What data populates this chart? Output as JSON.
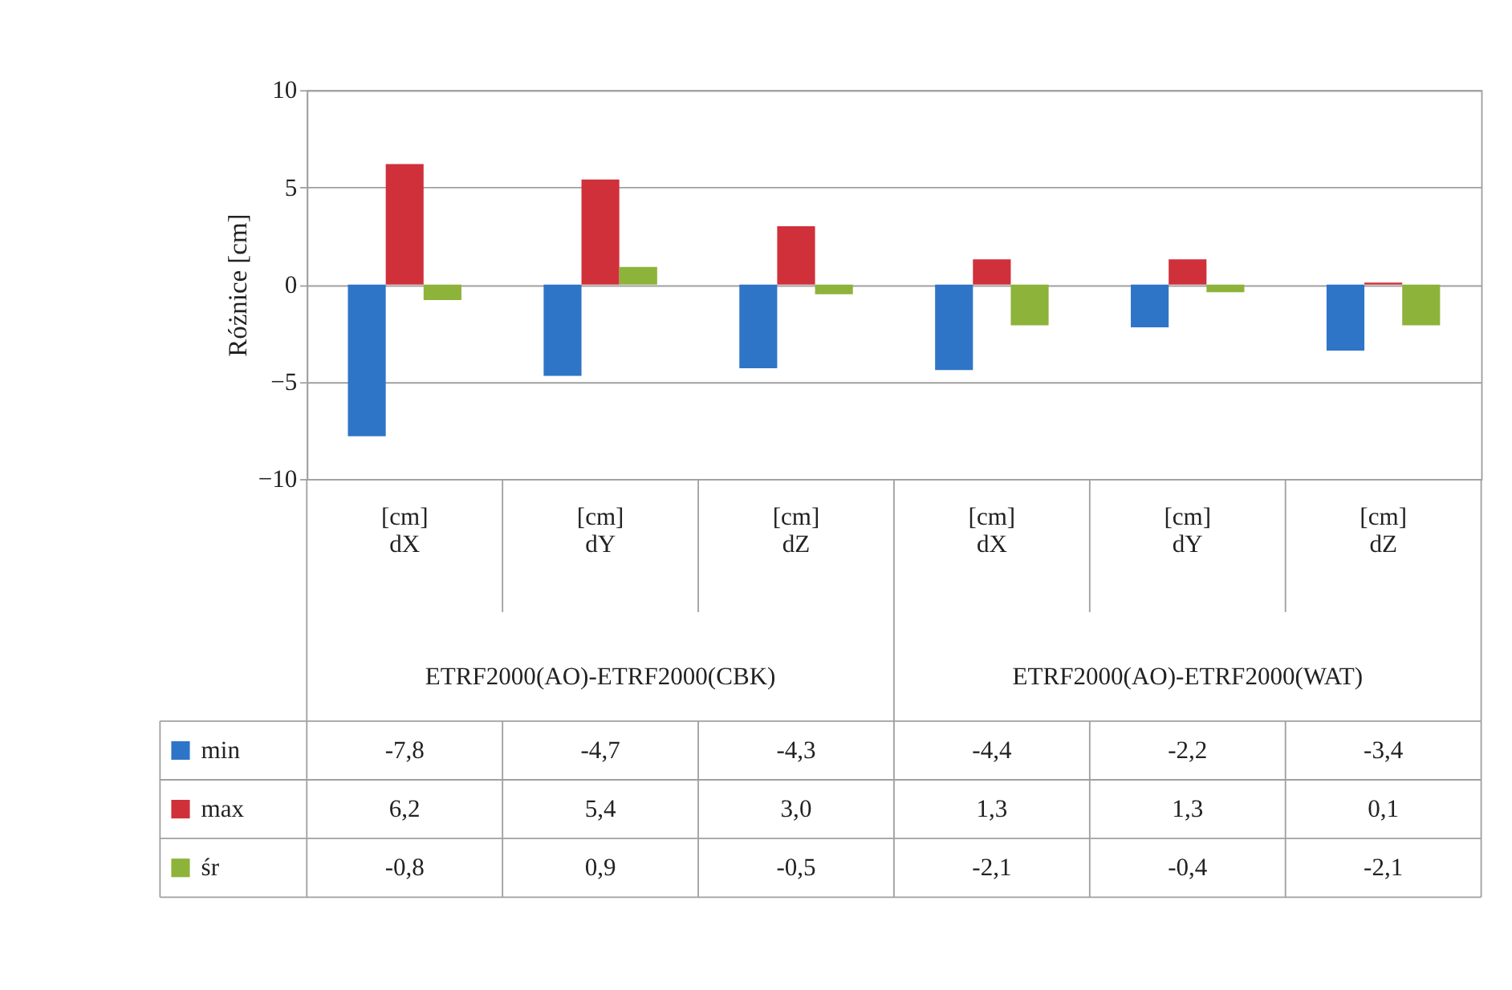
{
  "chart_data": {
    "type": "bar",
    "ylabel": "Różnice [cm]",
    "categories": [
      "[cm] dX",
      "[cm] dY",
      "[cm] dZ",
      "[cm] dX",
      "[cm] dY",
      "[cm] dZ"
    ],
    "series": [
      {
        "name": "min",
        "color": "#2e75c8",
        "values": [
          -7.8,
          -4.7,
          -4.3,
          -4.4,
          -2.2,
          -3.4
        ],
        "value_labels": [
          "-7,8",
          "-4,7",
          "-4,3",
          "-4,4",
          "-2,2",
          "-3,4"
        ]
      },
      {
        "name": "max",
        "color": "#d0303a",
        "values": [
          6.2,
          5.4,
          3.0,
          1.3,
          1.3,
          0.1
        ],
        "value_labels": [
          "6,2",
          "5,4",
          "3,0",
          "1,3",
          "1,3",
          "0,1"
        ]
      },
      {
        "name": "śr",
        "color": "#8db33a",
        "values": [
          -0.8,
          0.9,
          -0.5,
          -2.1,
          -0.4,
          -2.1
        ],
        "value_labels": [
          "-0,8",
          "0,9",
          "-0,5",
          "-2,1",
          "-0,4",
          "-2,1"
        ]
      }
    ],
    "annotations": [
      "ETRF2000(AO)-ETRF2000(CBK)",
      "ETRF2000(AO)-ETRF2000(WAT)"
    ],
    "ylim": [
      -10,
      10
    ],
    "yticks": [
      -10,
      -5,
      0,
      5,
      10
    ],
    "grid": "y",
    "legend": "bottom left"
  }
}
